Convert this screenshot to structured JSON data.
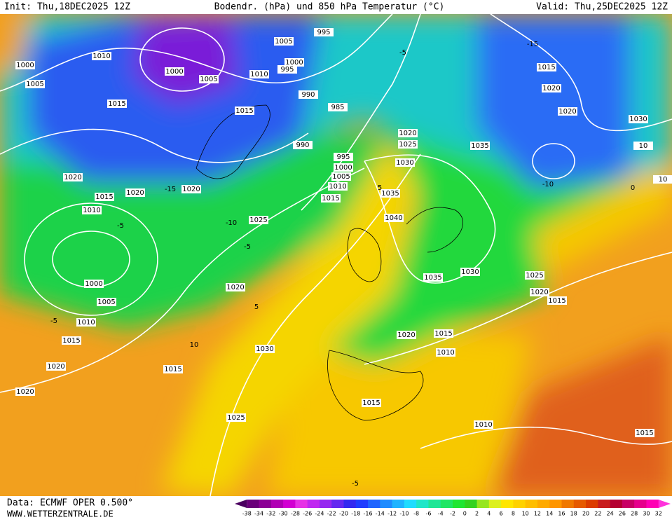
{
  "header": {
    "init": "Init: Thu,18DEC2025 12Z",
    "title": "Bodendr. (hPa) und 850 hPa Temperatur (°C)",
    "valid": "Valid: Thu,25DEC2025 12Z"
  },
  "footer": {
    "data": "Data: ECMWF OPER 0.500°",
    "site": "WWW.WETTERZENTRALE.DE"
  },
  "isobar_labels": [
    "1000",
    "1010",
    "1005",
    "1000",
    "1005",
    "1010",
    "995",
    "1000",
    "1005",
    "995",
    "990",
    "985",
    "1015",
    "1015",
    "990",
    "995",
    "1000",
    "1005",
    "1010",
    "1015",
    "1020",
    "1025",
    "1030",
    "1035",
    "1040",
    "1025",
    "1020",
    "1015",
    "1020",
    "1020",
    "1010",
    "1000",
    "1005",
    "1010",
    "1015",
    "1020",
    "1020",
    "1020",
    "1030",
    "1015",
    "1025",
    "1015",
    "1020",
    "1015",
    "1010",
    "1010",
    "1015",
    "1035",
    "1030",
    "1025",
    "1020",
    "1015",
    "1035",
    "1015",
    "1020",
    "1020",
    "1030",
    "10",
    "10"
  ],
  "temperature_labels": [
    "-15",
    "-10",
    "-5",
    "-5",
    "-15",
    "-10",
    "-5",
    "5",
    "10",
    "5",
    "0",
    "-5",
    "-5"
  ],
  "colorbar": {
    "labels": [
      "-38",
      "-34",
      "-32",
      "-30",
      "-28",
      "-26",
      "-24",
      "-22",
      "-20",
      "-18",
      "-16",
      "-14",
      "-12",
      "-10",
      "-8",
      "-6",
      "-4",
      "-2",
      "0",
      "2",
      "4",
      "6",
      "8",
      "10",
      "12",
      "14",
      "16",
      "18",
      "20",
      "22",
      "24",
      "26",
      "28",
      "30",
      "32"
    ],
    "colors": [
      "#4b0060",
      "#6a007a",
      "#8c0096",
      "#b000b4",
      "#d200d2",
      "#e632e6",
      "#c028f0",
      "#9628f0",
      "#6428f0",
      "#3228f0",
      "#1e3cff",
      "#1e64ff",
      "#1e8cff",
      "#1eb4ff",
      "#1edcff",
      "#1ee6c8",
      "#1ee696",
      "#1ee664",
      "#1ee632",
      "#32d21e",
      "#96e61e",
      "#dcf01e",
      "#ffe600",
      "#ffd200",
      "#ffbe00",
      "#ffaa00",
      "#ff9600",
      "#f07800",
      "#e65a00",
      "#dc3c00",
      "#c81e1e",
      "#b40032",
      "#c80064",
      "#e6008c",
      "#ff00b4",
      "#ff32dc"
    ]
  }
}
